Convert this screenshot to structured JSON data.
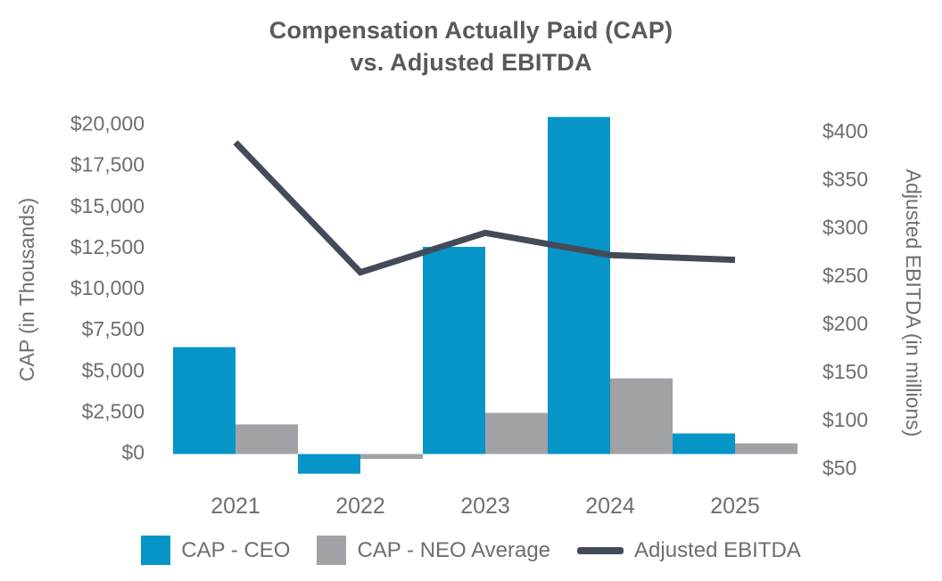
{
  "title": {
    "line1": "Compensation Actually Paid (CAP)",
    "line2": "vs. Adjusted EBITDA"
  },
  "colors": {
    "ceo_bar": "#0794C7",
    "neo_bar": "#A0A2A5",
    "ebitda_line": "#434B59",
    "title_text": "#58595B",
    "axis_text": "#6D6E70"
  },
  "chart_data": {
    "type": "combo-bar-line",
    "categories": [
      "2021",
      "2022",
      "2023",
      "2024",
      "2025"
    ],
    "series": [
      {
        "name": "CAP - CEO",
        "type": "bar",
        "axis": "left",
        "color_key": "ceo_bar",
        "values": [
          6500,
          -1200,
          12600,
          20500,
          1250
        ]
      },
      {
        "name": "CAP - NEO Average",
        "type": "bar",
        "axis": "left",
        "color_key": "neo_bar",
        "values": [
          1800,
          -300,
          2500,
          4600,
          650
        ]
      },
      {
        "name": "Adjusted EBITDA",
        "type": "line",
        "axis": "right",
        "color_key": "ebitda_line",
        "values": [
          390,
          255,
          296,
          273,
          268
        ]
      }
    ],
    "left_axis": {
      "label": "CAP (in Thousands)",
      "range": [
        0,
        20000
      ],
      "ticks": [
        {
          "value": 20000,
          "label": "$20,000"
        },
        {
          "value": 17500,
          "label": "$17,500"
        },
        {
          "value": 15000,
          "label": "$15,000"
        },
        {
          "value": 12500,
          "label": "$12,500"
        },
        {
          "value": 10000,
          "label": "$10,000"
        },
        {
          "value": 7500,
          "label": "$7,500"
        },
        {
          "value": 5000,
          "label": "$5,000"
        },
        {
          "value": 2500,
          "label": "$2,500"
        },
        {
          "value": 0,
          "label": "$0"
        }
      ]
    },
    "right_axis": {
      "label": "Adjusted EBITDA (in millions)",
      "range": [
        50,
        400
      ],
      "ticks": [
        {
          "value": 400,
          "label": "$400"
        },
        {
          "value": 350,
          "label": "$350"
        },
        {
          "value": 300,
          "label": "$300"
        },
        {
          "value": 250,
          "label": "$250"
        },
        {
          "value": 200,
          "label": "$200"
        },
        {
          "value": 150,
          "label": "$150"
        },
        {
          "value": 100,
          "label": "$100"
        },
        {
          "value": 50,
          "label": "$50"
        }
      ]
    },
    "grid": false,
    "legend_position": "bottom"
  }
}
